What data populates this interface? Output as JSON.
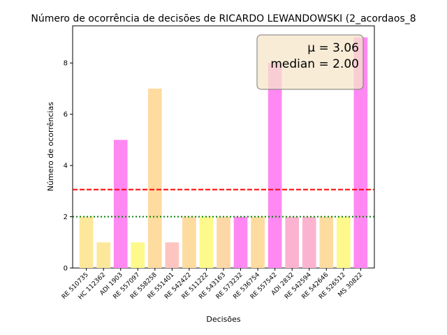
{
  "chart_data": {
    "type": "bar",
    "title": "Número de ocorrência de decisões de RICARDO LEWANDOWSKI (2_acordaos_8",
    "xlabel": "Decisões",
    "ylabel": "Número de ocorrências",
    "categories": [
      "RE 510735",
      "HC 112362",
      "ADI 1903",
      "RE 557097",
      "RE 558258",
      "RE 551401",
      "RE 542422",
      "RE 511222",
      "RE 543163",
      "RE 573232",
      "RE 536754",
      "RE 557542",
      "ADI 2832",
      "RE 542594",
      "RE 542646",
      "RE 526512",
      "MS 30822"
    ],
    "values": [
      2,
      1,
      5,
      1,
      7,
      1,
      2,
      2,
      2,
      2,
      2,
      8,
      2,
      2,
      2,
      2,
      9
    ],
    "bar_colors": [
      "#fde79a",
      "#fde79a",
      "#ff88f3",
      "#fdf98a",
      "#fedb9e",
      "#fec5c0",
      "#fedb9e",
      "#fdf98a",
      "#fdd8a6",
      "#ff88f3",
      "#fedb9e",
      "#ff88f3",
      "#fcb3d0",
      "#fcb3d0",
      "#fedb9e",
      "#fdf98a",
      "#ff88f3"
    ],
    "ylim": [
      0,
      9.45
    ],
    "yticks": [
      0,
      2,
      4,
      6,
      8
    ],
    "mean": 3.06,
    "median": 2.0,
    "mean_line": {
      "value": 3.0588,
      "color": "#ff0000",
      "style": "dashed"
    },
    "median_line": {
      "value": 2.0,
      "color": "#008000",
      "style": "dotted"
    },
    "stats_box": {
      "mean_label": "μ = 3.06",
      "median_label": "median = 2.00",
      "placement": "top-right"
    },
    "grid": false
  }
}
